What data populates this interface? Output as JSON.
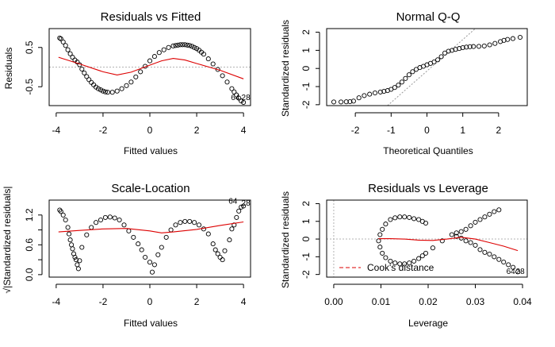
{
  "chart_data": [
    {
      "type": "scatter",
      "title": "Residuals vs Fitted",
      "xlabel": "Fitted values",
      "ylabel": "Residuals",
      "xlim": [
        -4.3,
        4.3
      ],
      "ylim": [
        -0.98,
        0.98
      ],
      "xticks": [
        "-4",
        "-2",
        "0",
        "2",
        "4"
      ],
      "xtick_values": [
        -4,
        -2,
        0,
        2,
        4
      ],
      "yticks": [
        "-0.5",
        "0.5"
      ],
      "ytick_values": [
        -0.5,
        0.5
      ],
      "reference_line": {
        "y": 0,
        "style": "dotted",
        "color": "#b3b3b3"
      },
      "smooth": {
        "color": "#dd0000",
        "x": [
          -3.9,
          -3.0,
          -2.0,
          -1.4,
          -0.8,
          0.0,
          0.5,
          1.0,
          1.5,
          2.0,
          3.0,
          4.0
        ],
        "y": [
          0.25,
          0.08,
          -0.12,
          -0.2,
          -0.13,
          0.05,
          0.16,
          0.22,
          0.18,
          0.09,
          -0.08,
          -0.3
        ]
      },
      "points": {
        "color": "#000000",
        "marker": "open-circle",
        "x": [
          -3.85,
          -3.8,
          -3.7,
          -3.6,
          -3.5,
          -3.4,
          -3.3,
          -3.2,
          -3.1,
          -3.0,
          -2.9,
          -2.8,
          -2.7,
          -2.6,
          -2.5,
          -2.4,
          -2.3,
          -2.2,
          -2.1,
          -2.0,
          -1.9,
          -1.8,
          -1.6,
          -1.4,
          -1.2,
          -1.0,
          -0.8,
          -0.6,
          -0.4,
          -0.2,
          0.0,
          0.2,
          0.4,
          0.6,
          0.8,
          1.0,
          1.1,
          1.2,
          1.3,
          1.4,
          1.5,
          1.6,
          1.7,
          1.8,
          1.9,
          2.0,
          2.1,
          2.2,
          2.3,
          2.5,
          2.7,
          2.9,
          3.1,
          3.3,
          3.5,
          3.6,
          3.7,
          3.8,
          3.9,
          4.0
        ],
        "y": [
          0.74,
          0.72,
          0.64,
          0.55,
          0.44,
          0.34,
          0.25,
          0.18,
          0.13,
          0.06,
          -0.05,
          -0.15,
          -0.24,
          -0.32,
          -0.39,
          -0.45,
          -0.51,
          -0.55,
          -0.58,
          -0.61,
          -0.63,
          -0.64,
          -0.64,
          -0.61,
          -0.55,
          -0.47,
          -0.38,
          -0.25,
          -0.12,
          0.02,
          0.16,
          0.27,
          0.37,
          0.44,
          0.5,
          0.54,
          0.55,
          0.56,
          0.57,
          0.57,
          0.57,
          0.56,
          0.55,
          0.53,
          0.5,
          0.47,
          0.43,
          0.38,
          0.33,
          0.21,
          0.08,
          -0.06,
          -0.22,
          -0.38,
          -0.55,
          -0.63,
          -0.71,
          -0.79,
          -0.86,
          -0.9
        ]
      },
      "labels": [
        {
          "text": "64",
          "x": 3.65,
          "y": -0.84
        },
        {
          "text": "28",
          "x": 4.1,
          "y": -0.84
        }
      ]
    },
    {
      "type": "scatter",
      "title": "Normal Q-Q",
      "xlabel": "Theoretical Quantiles",
      "ylabel": "Standardized residuals",
      "xlim": [
        -2.8,
        2.8
      ],
      "ylim": [
        -2.05,
        2.2
      ],
      "xticks": [
        "-2",
        "-1",
        "0",
        "1",
        "2"
      ],
      "xtick_values": [
        -2,
        -1,
        0,
        1,
        2
      ],
      "yticks": [
        "-2",
        "-1",
        "0",
        "1",
        "2"
      ],
      "ytick_values": [
        -2,
        -1,
        0,
        1,
        2
      ],
      "reference_line": {
        "x": [
          -1.1,
          1.35
        ],
        "y": [
          -2.05,
          2.2
        ],
        "style": "dotted",
        "color": "#999999"
      },
      "points": {
        "color": "#000000",
        "marker": "open-circle",
        "x": [
          -2.6,
          -2.4,
          -2.25,
          -2.15,
          -2.05,
          -1.9,
          -1.75,
          -1.6,
          -1.45,
          -1.3,
          -1.2,
          -1.1,
          -1.0,
          -0.9,
          -0.8,
          -0.7,
          -0.6,
          -0.5,
          -0.4,
          -0.3,
          -0.2,
          -0.1,
          0.0,
          0.1,
          0.2,
          0.3,
          0.4,
          0.5,
          0.6,
          0.7,
          0.8,
          0.9,
          1.0,
          1.1,
          1.2,
          1.3,
          1.45,
          1.6,
          1.75,
          1.9,
          2.05,
          2.15,
          2.25,
          2.4,
          2.6
        ],
        "y": [
          -1.85,
          -1.85,
          -1.84,
          -1.83,
          -1.8,
          -1.62,
          -1.5,
          -1.42,
          -1.35,
          -1.3,
          -1.26,
          -1.22,
          -1.15,
          -1.05,
          -0.92,
          -0.75,
          -0.55,
          -0.35,
          -0.18,
          -0.05,
          0.05,
          0.12,
          0.2,
          0.28,
          0.36,
          0.48,
          0.65,
          0.85,
          0.95,
          1.0,
          1.05,
          1.1,
          1.15,
          1.18,
          1.2,
          1.21,
          1.22,
          1.24,
          1.3,
          1.38,
          1.48,
          1.55,
          1.6,
          1.65,
          1.72
        ]
      }
    },
    {
      "type": "scatter",
      "title": "Scale-Location",
      "xlabel": "Fitted values",
      "ylabel": "√|Standardized residuals|",
      "xlim": [
        -4.3,
        4.3
      ],
      "ylim": [
        -0.05,
        1.5
      ],
      "xticks": [
        "-4",
        "-2",
        "0",
        "2",
        "4"
      ],
      "xtick_values": [
        -4,
        -2,
        0,
        2,
        4
      ],
      "yticks": [
        "0.0",
        "0.6",
        "1.2"
      ],
      "ytick_values": [
        0.0,
        0.6,
        1.2
      ],
      "extra_yticks": [
        0.3,
        0.9
      ],
      "smooth": {
        "color": "#dd0000",
        "x": [
          -3.9,
          -3.0,
          -2.0,
          -1.0,
          0.0,
          0.5,
          1.0,
          2.0,
          3.0,
          4.0
        ],
        "y": [
          0.86,
          0.89,
          0.92,
          0.93,
          0.88,
          0.84,
          0.86,
          0.91,
          0.99,
          1.06
        ]
      },
      "points": {
        "color": "#000000",
        "marker": "open-circle",
        "x": [
          -3.85,
          -3.8,
          -3.7,
          -3.6,
          -3.5,
          -3.45,
          -3.4,
          -3.35,
          -3.3,
          -3.25,
          -3.2,
          -3.15,
          -3.1,
          -3.05,
          -3.0,
          -2.9,
          -2.7,
          -2.5,
          -2.3,
          -2.1,
          -1.9,
          -1.7,
          -1.5,
          -1.3,
          -1.1,
          -0.9,
          -0.7,
          -0.5,
          -0.35,
          -0.2,
          0.0,
          0.1,
          0.2,
          0.35,
          0.5,
          0.7,
          0.9,
          1.1,
          1.3,
          1.5,
          1.7,
          1.9,
          2.1,
          2.3,
          2.5,
          2.7,
          2.8,
          2.9,
          3.0,
          3.1,
          3.2,
          3.4,
          3.5,
          3.6,
          3.7,
          3.8,
          3.9,
          4.0
        ],
        "y": [
          1.3,
          1.27,
          1.2,
          1.1,
          0.95,
          0.82,
          0.7,
          0.6,
          0.52,
          0.42,
          0.35,
          0.3,
          0.2,
          0.12,
          0.28,
          0.55,
          0.8,
          0.95,
          1.05,
          1.1,
          1.15,
          1.16,
          1.14,
          1.1,
          1.0,
          0.88,
          0.75,
          0.62,
          0.5,
          0.35,
          0.25,
          0.05,
          0.2,
          0.4,
          0.55,
          0.75,
          0.9,
          1.0,
          1.05,
          1.07,
          1.07,
          1.05,
          1.0,
          0.92,
          0.82,
          0.62,
          0.5,
          0.42,
          0.35,
          0.3,
          0.48,
          0.7,
          0.92,
          1.0,
          1.15,
          1.28,
          1.36,
          1.38
        ]
      },
      "labels": [
        {
          "text": "64",
          "x": 3.55,
          "y": 1.43
        },
        {
          "text": "28",
          "x": 4.1,
          "y": 1.39
        }
      ]
    },
    {
      "type": "scatter",
      "title": "Residuals vs Leverage",
      "xlabel": "Leverage",
      "ylabel": "Standardized residuals",
      "xlim": [
        -0.0015,
        0.041
      ],
      "ylim": [
        -2.15,
        2.2
      ],
      "xticks": [
        "0.00",
        "0.01",
        "0.02",
        "0.03",
        "0.04"
      ],
      "xtick_values": [
        0.0,
        0.01,
        0.02,
        0.03,
        0.04
      ],
      "yticks": [
        "-2",
        "-1",
        "0",
        "1",
        "2"
      ],
      "ytick_values": [
        -2,
        -1,
        0,
        1,
        2
      ],
      "reference_lines": [
        {
          "y": 0,
          "style": "dotted",
          "color": "#b3b3b3"
        },
        {
          "x": 0,
          "style": "dotted",
          "color": "#b3b3b3"
        }
      ],
      "smooth": {
        "color": "#dd0000",
        "x": [
          0.0095,
          0.012,
          0.015,
          0.018,
          0.021,
          0.024,
          0.027,
          0.03,
          0.033,
          0.036,
          0.039
        ],
        "y": [
          0.02,
          0.02,
          0.0,
          -0.06,
          -0.08,
          0.0,
          0.1,
          0.0,
          -0.2,
          -0.4,
          -0.65
        ]
      },
      "points": {
        "color": "#000000",
        "marker": "open-circle",
        "x": [
          0.0095,
          0.0098,
          0.0103,
          0.011,
          0.012,
          0.013,
          0.014,
          0.015,
          0.016,
          0.017,
          0.018,
          0.0188,
          0.0195,
          0.0098,
          0.0103,
          0.011,
          0.012,
          0.013,
          0.014,
          0.015,
          0.016,
          0.017,
          0.018,
          0.0188,
          0.0195,
          0.021,
          0.023,
          0.025,
          0.026,
          0.027,
          0.028,
          0.029,
          0.03,
          0.031,
          0.032,
          0.033,
          0.034,
          0.035,
          0.026,
          0.027,
          0.028,
          0.029,
          0.03,
          0.031,
          0.032,
          0.033,
          0.034,
          0.035,
          0.036,
          0.037,
          0.038,
          0.039
        ],
        "y": [
          -0.1,
          0.25,
          0.55,
          0.85,
          1.1,
          1.2,
          1.25,
          1.25,
          1.22,
          1.15,
          1.1,
          1.0,
          0.9,
          -0.45,
          -0.8,
          -1.05,
          -1.25,
          -1.35,
          -1.4,
          -1.4,
          -1.35,
          -1.25,
          -1.1,
          -0.95,
          -0.8,
          -0.5,
          -0.1,
          0.25,
          0.35,
          0.42,
          0.55,
          0.75,
          0.95,
          1.1,
          1.25,
          1.4,
          1.55,
          1.65,
          0.15,
          0.05,
          -0.1,
          -0.2,
          -0.35,
          -0.6,
          -0.75,
          -0.85,
          -1.0,
          -1.15,
          -1.3,
          -1.45,
          -1.6,
          -1.85
        ]
      },
      "labels": [
        {
          "text": "64",
          "x": 0.0375,
          "y": -1.98
        },
        {
          "text": "28",
          "x": 0.0395,
          "y": -1.98
        }
      ],
      "legend": {
        "entries": [
          "Cook's distance"
        ],
        "placement": "bottom-left",
        "color": "#dd0000",
        "style": "dashed"
      }
    }
  ]
}
